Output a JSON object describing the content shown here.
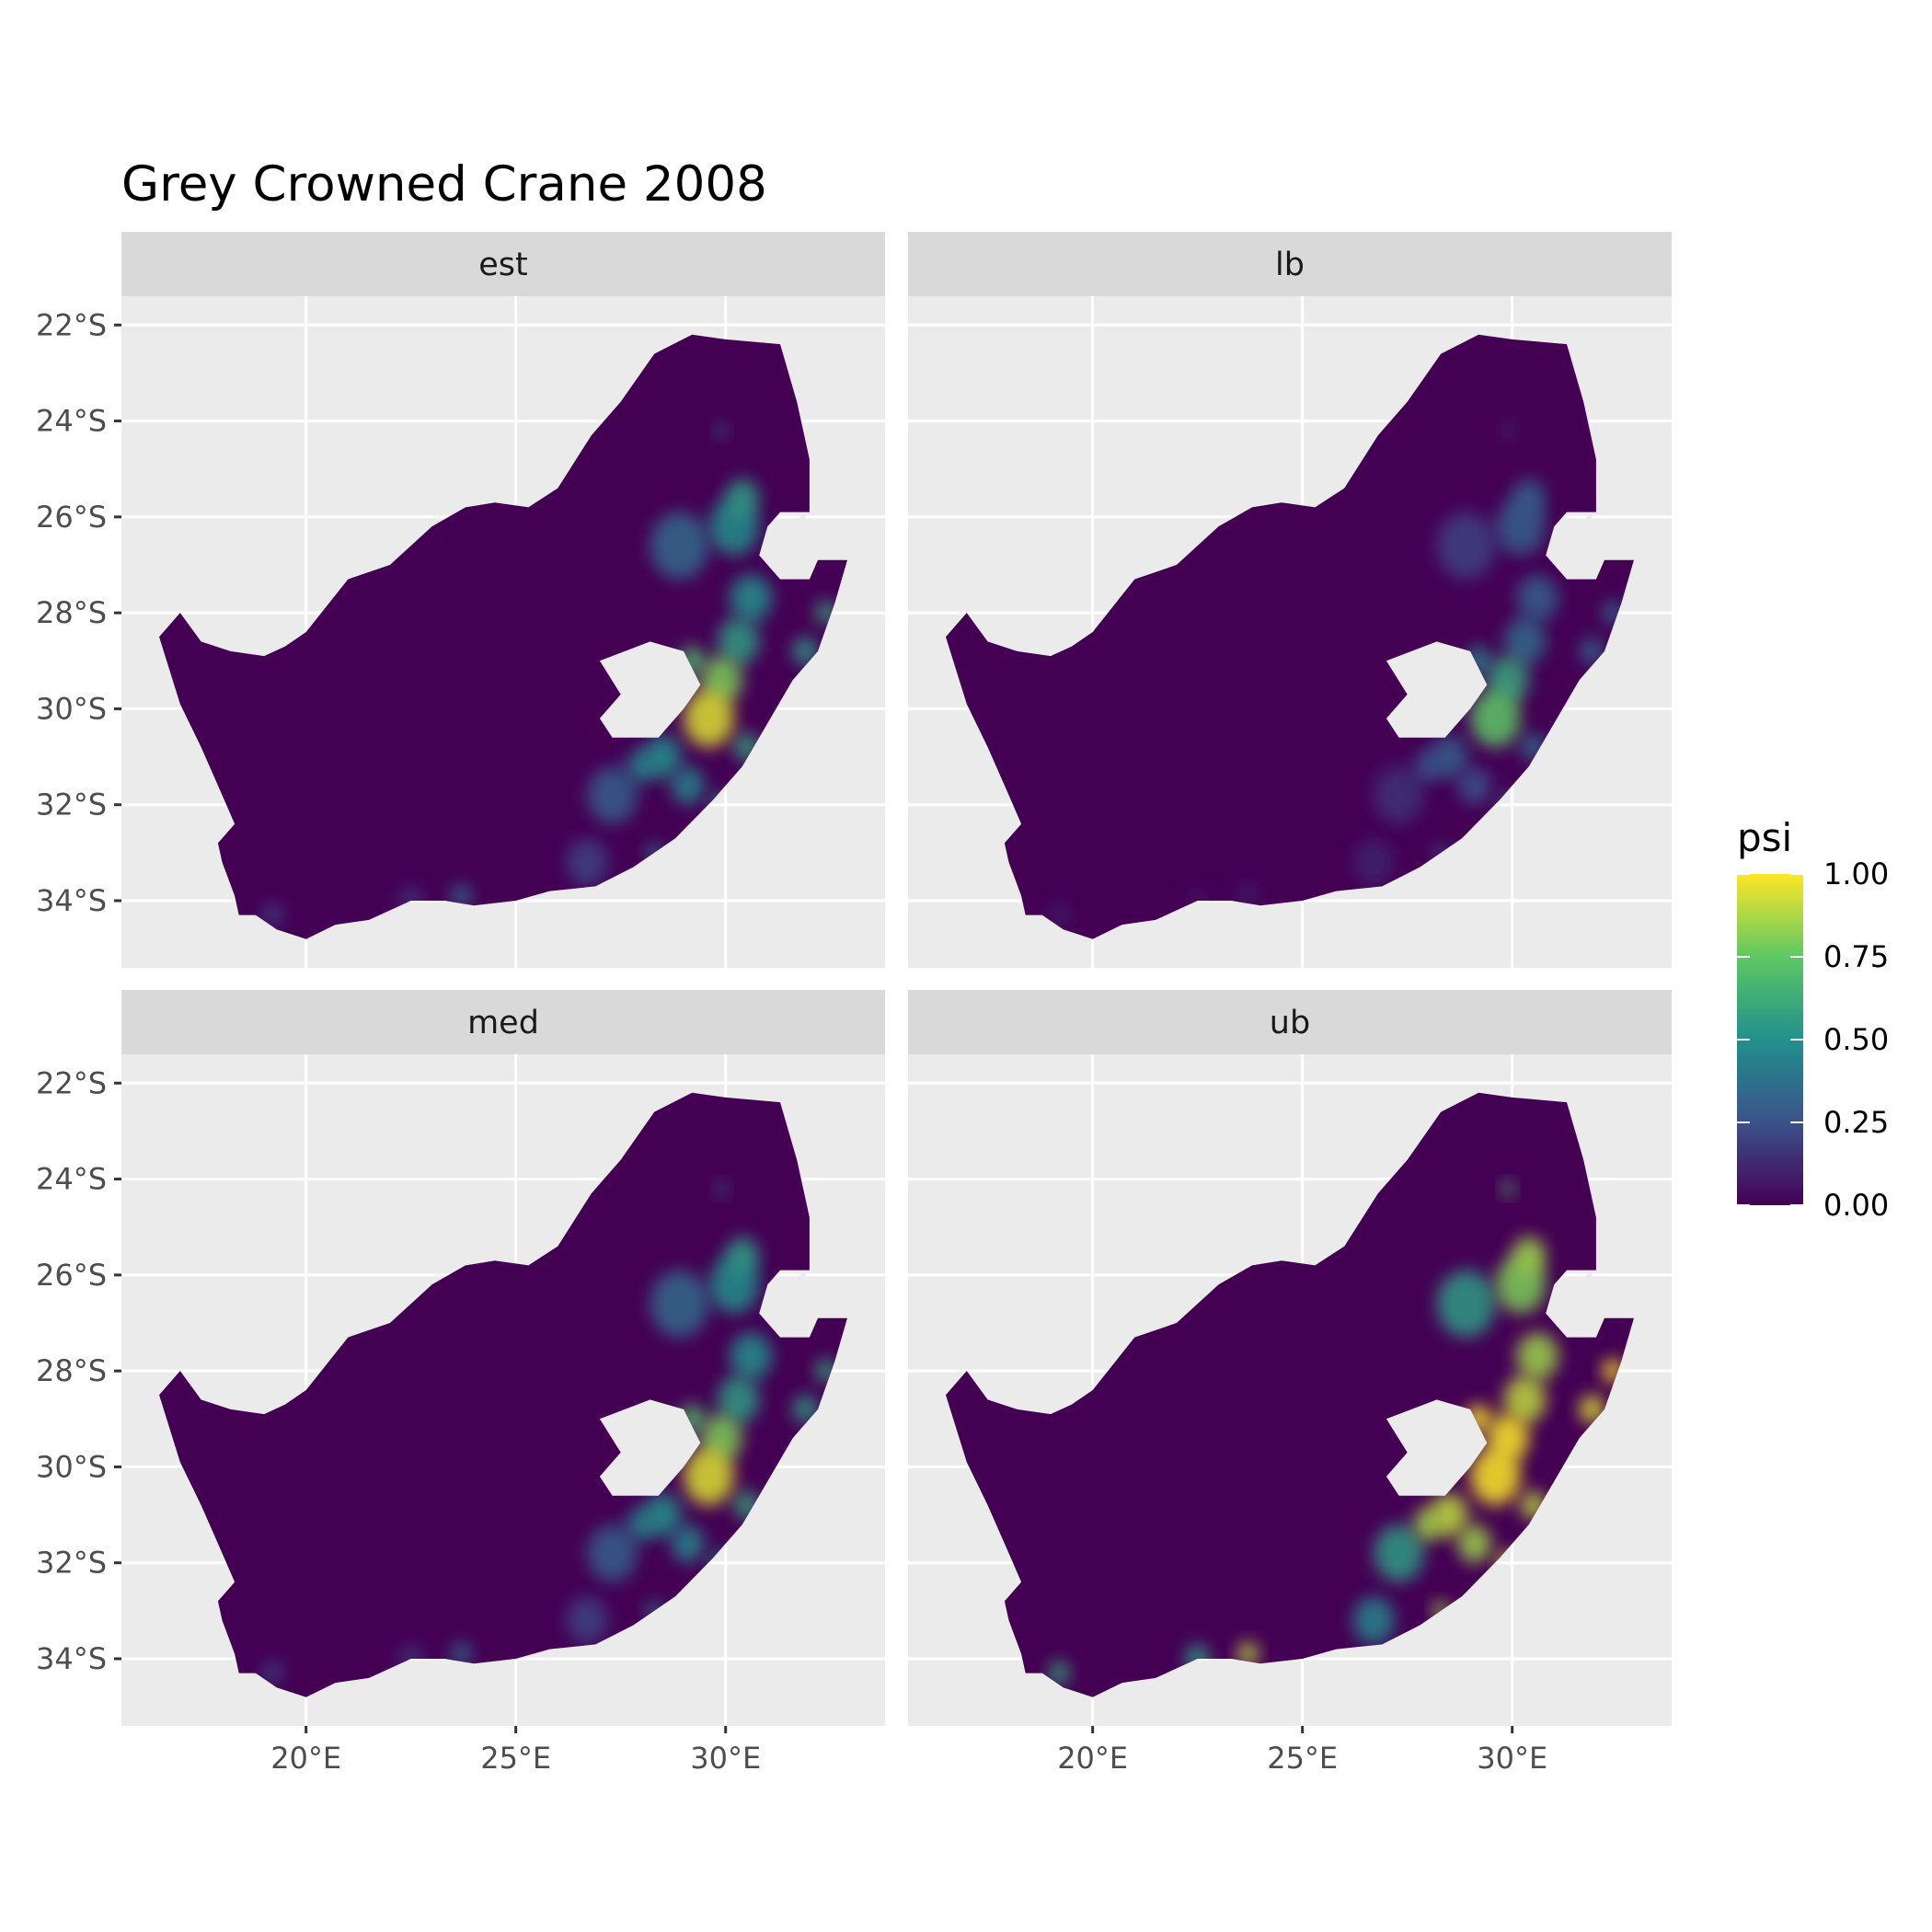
{
  "title": "Grey Crowned Crane 2008",
  "chart_data": {
    "type": "heatmap",
    "title": "Grey Crowned Crane 2008",
    "facets": [
      "est",
      "lb",
      "med",
      "ub"
    ],
    "x_ticks": [
      "20°E",
      "25°E",
      "30°E"
    ],
    "x_tick_values": [
      20,
      25,
      30
    ],
    "y_ticks": [
      "22°S",
      "24°S",
      "26°S",
      "28°S",
      "30°S",
      "32°S",
      "34°S"
    ],
    "y_tick_values": [
      -22,
      -24,
      -26,
      -28,
      -30,
      -32,
      -34
    ],
    "xlim": [
      15.6,
      33.8
    ],
    "ylim": [
      -35.4,
      -21.4
    ],
    "grid": true,
    "region_outline_lonlat": [
      [
        16.5,
        -28.5
      ],
      [
        17.0,
        -28.0
      ],
      [
        17.5,
        -28.6
      ],
      [
        18.2,
        -28.8
      ],
      [
        19.0,
        -28.9
      ],
      [
        19.5,
        -28.7
      ],
      [
        20.0,
        -28.4
      ],
      [
        21.0,
        -27.3
      ],
      [
        22.0,
        -27.0
      ],
      [
        23.0,
        -26.2
      ],
      [
        23.8,
        -25.8
      ],
      [
        24.5,
        -25.7
      ],
      [
        25.3,
        -25.8
      ],
      [
        26.0,
        -25.4
      ],
      [
        26.8,
        -24.3
      ],
      [
        27.5,
        -23.6
      ],
      [
        28.3,
        -22.6
      ],
      [
        29.2,
        -22.2
      ],
      [
        30.0,
        -22.3
      ],
      [
        31.3,
        -22.4
      ],
      [
        31.7,
        -23.6
      ],
      [
        32.0,
        -24.8
      ],
      [
        32.0,
        -25.9
      ],
      [
        31.3,
        -25.9
      ],
      [
        31.0,
        -26.2
      ],
      [
        30.8,
        -26.8
      ],
      [
        31.3,
        -27.3
      ],
      [
        32.0,
        -27.3
      ],
      [
        32.2,
        -26.9
      ],
      [
        32.9,
        -26.9
      ],
      [
        32.6,
        -27.8
      ],
      [
        32.2,
        -28.8
      ],
      [
        31.6,
        -29.4
      ],
      [
        31.0,
        -30.3
      ],
      [
        30.4,
        -31.2
      ],
      [
        29.7,
        -31.9
      ],
      [
        28.8,
        -32.7
      ],
      [
        27.8,
        -33.3
      ],
      [
        26.9,
        -33.7
      ],
      [
        25.8,
        -33.8
      ],
      [
        25.0,
        -34.0
      ],
      [
        24.0,
        -34.1
      ],
      [
        23.3,
        -34.0
      ],
      [
        22.5,
        -34.0
      ],
      [
        21.5,
        -34.4
      ],
      [
        20.7,
        -34.5
      ],
      [
        20.0,
        -34.8
      ],
      [
        19.3,
        -34.6
      ],
      [
        18.8,
        -34.3
      ],
      [
        18.4,
        -34.3
      ],
      [
        18.3,
        -33.9
      ],
      [
        18.0,
        -33.2
      ],
      [
        17.9,
        -32.8
      ],
      [
        18.3,
        -32.4
      ],
      [
        18.0,
        -31.8
      ],
      [
        17.5,
        -30.8
      ],
      [
        17.0,
        -29.9
      ],
      [
        16.5,
        -28.5
      ]
    ],
    "lakes_lonlat": [
      [
        [
          27.0,
          -29.0
        ],
        [
          28.2,
          -28.6
        ],
        [
          29.0,
          -28.8
        ],
        [
          29.4,
          -29.5
        ],
        [
          29.0,
          -30.0
        ],
        [
          28.4,
          -30.6
        ],
        [
          27.3,
          -30.6
        ],
        [
          27.0,
          -30.2
        ],
        [
          27.5,
          -29.7
        ],
        [
          27.0,
          -29.0
        ]
      ],
      [
        [
          30.8,
          -26.8
        ],
        [
          31.9,
          -25.9
        ],
        [
          31.9,
          -26.9
        ],
        [
          30.8,
          -26.8
        ]
      ]
    ],
    "psi_hotspots_lonlat": [
      {
        "lon": 29.6,
        "lat": -30.2,
        "r": 0.6,
        "est": 0.95,
        "lb": 0.75,
        "med": 0.95,
        "ub": 1.0
      },
      {
        "lon": 29.9,
        "lat": -29.4,
        "r": 0.5,
        "est": 0.8,
        "lb": 0.6,
        "med": 0.8,
        "ub": 1.0
      },
      {
        "lon": 29.2,
        "lat": -29.0,
        "r": 0.3,
        "est": 0.7,
        "lb": 0.45,
        "med": 0.7,
        "ub": 1.0
      },
      {
        "lon": 30.3,
        "lat": -28.6,
        "r": 0.5,
        "est": 0.55,
        "lb": 0.35,
        "med": 0.55,
        "ub": 0.9
      },
      {
        "lon": 30.6,
        "lat": -27.7,
        "r": 0.5,
        "est": 0.5,
        "lb": 0.3,
        "med": 0.5,
        "ub": 0.85
      },
      {
        "lon": 30.2,
        "lat": -26.2,
        "r": 0.6,
        "est": 0.5,
        "lb": 0.3,
        "med": 0.5,
        "ub": 0.8
      },
      {
        "lon": 30.4,
        "lat": -25.6,
        "r": 0.4,
        "est": 0.55,
        "lb": 0.3,
        "med": 0.55,
        "ub": 0.85
      },
      {
        "lon": 28.9,
        "lat": -26.6,
        "r": 0.7,
        "est": 0.35,
        "lb": 0.2,
        "med": 0.35,
        "ub": 0.55
      },
      {
        "lon": 28.5,
        "lat": -31.0,
        "r": 0.45,
        "est": 0.5,
        "lb": 0.3,
        "med": 0.5,
        "ub": 0.9
      },
      {
        "lon": 28.0,
        "lat": -31.2,
        "r": 0.35,
        "est": 0.45,
        "lb": 0.25,
        "med": 0.45,
        "ub": 0.85
      },
      {
        "lon": 27.3,
        "lat": -31.8,
        "r": 0.6,
        "est": 0.3,
        "lb": 0.15,
        "med": 0.3,
        "ub": 0.55
      },
      {
        "lon": 29.1,
        "lat": -31.6,
        "r": 0.4,
        "est": 0.45,
        "lb": 0.25,
        "med": 0.45,
        "ub": 0.85
      },
      {
        "lon": 30.5,
        "lat": -30.8,
        "r": 0.3,
        "est": 0.6,
        "lb": 0.35,
        "med": 0.6,
        "ub": 0.9
      },
      {
        "lon": 31.9,
        "lat": -28.8,
        "r": 0.3,
        "est": 0.55,
        "lb": 0.3,
        "med": 0.55,
        "ub": 0.95
      },
      {
        "lon": 32.4,
        "lat": -28.0,
        "r": 0.25,
        "est": 0.6,
        "lb": 0.35,
        "med": 0.6,
        "ub": 1.0
      },
      {
        "lon": 29.9,
        "lat": -32.0,
        "r": 0.25,
        "est": 0.5,
        "lb": 0.3,
        "med": 0.5,
        "ub": 0.95
      },
      {
        "lon": 28.3,
        "lat": -33.0,
        "r": 0.2,
        "est": 0.4,
        "lb": 0.2,
        "med": 0.4,
        "ub": 0.85
      },
      {
        "lon": 26.7,
        "lat": -33.2,
        "r": 0.5,
        "est": 0.2,
        "lb": 0.1,
        "med": 0.2,
        "ub": 0.45
      },
      {
        "lon": 29.9,
        "lat": -24.2,
        "r": 0.15,
        "est": 0.3,
        "lb": 0.15,
        "med": 0.3,
        "ub": 0.7
      },
      {
        "lon": 23.7,
        "lat": -33.9,
        "r": 0.25,
        "est": 0.35,
        "lb": 0.1,
        "med": 0.35,
        "ub": 0.9
      },
      {
        "lon": 22.5,
        "lat": -34.0,
        "r": 0.3,
        "est": 0.15,
        "lb": 0.05,
        "med": 0.15,
        "ub": 0.55
      },
      {
        "lon": 19.2,
        "lat": -34.3,
        "r": 0.25,
        "est": 0.2,
        "lb": 0.1,
        "med": 0.2,
        "ub": 0.6
      }
    ],
    "legend": {
      "title": "psi",
      "labels": [
        "0.00",
        "0.25",
        "0.50",
        "0.75",
        "1.00"
      ],
      "values": [
        0,
        0.25,
        0.5,
        0.75,
        1
      ],
      "colors": [
        "#440154",
        "#3b528b",
        "#21908c",
        "#5dc863",
        "#fde725"
      ]
    },
    "colors": {
      "panel_bg": "#ebebeb",
      "strip_bg": "#d9d9d9",
      "grid": "#ffffff",
      "land_base": "#440154"
    }
  }
}
